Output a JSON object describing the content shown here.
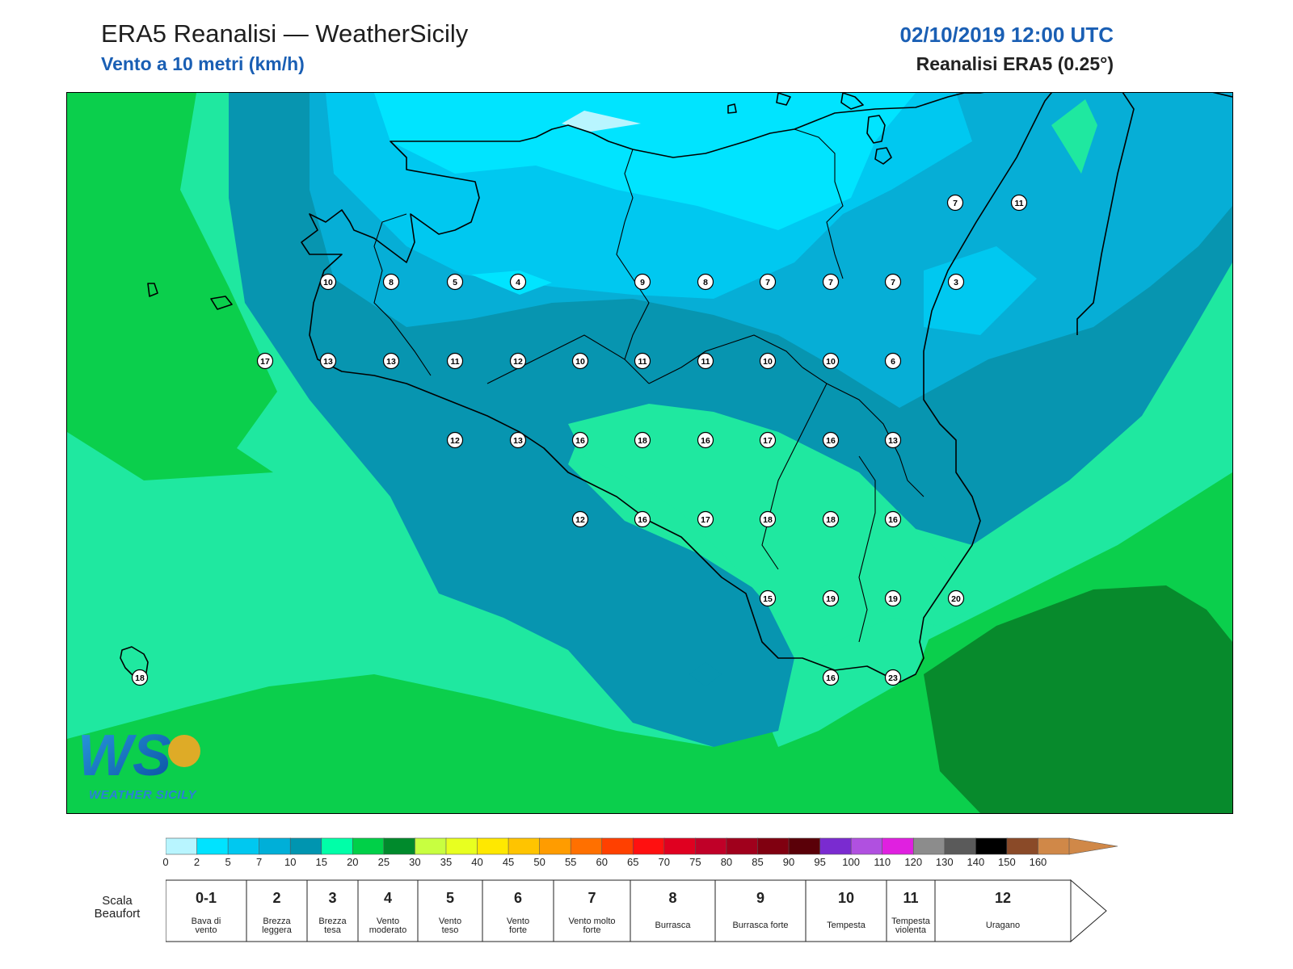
{
  "header": {
    "title": "ERA5 Reanalisi — WeatherSicily",
    "subtitle": "Vento a 10 metri (km/h)",
    "datetime": "02/10/2019 12:00 UTC",
    "source": "Reanalisi ERA5 (0.25°)"
  },
  "logo": {
    "text": "WEATHER SICILY",
    "letters": "WS"
  },
  "colorbar": {
    "ticks": [
      "0",
      "2",
      "5",
      "7",
      "10",
      "15",
      "20",
      "25",
      "30",
      "35",
      "40",
      "45",
      "50",
      "55",
      "60",
      "65",
      "70",
      "75",
      "80",
      "85",
      "90",
      "95",
      "100",
      "110",
      "120",
      "130",
      "140",
      "150",
      "160"
    ],
    "colors": [
      "#b8f5ff",
      "#00e3ff",
      "#00c8f0",
      "#00afd8",
      "#0095b0",
      "#00ffa8",
      "#00d048",
      "#008a2c",
      "#c8ff40",
      "#e8ff20",
      "#ffe800",
      "#ffc400",
      "#ff9c00",
      "#ff7000",
      "#ff4000",
      "#ff1010",
      "#e00020",
      "#c00028",
      "#a0001c",
      "#800010",
      "#5a0008",
      "#7a2bd0",
      "#b050e0",
      "#e020e0",
      "#8c8c8c",
      "#5a5a5a",
      "#000000",
      "#8a4a28",
      "#d08848"
    ]
  },
  "beaufort": {
    "label": "Scala Beaufort",
    "classes": [
      {
        "num": "0-1",
        "desc": "Bava di vento"
      },
      {
        "num": "2",
        "desc": "Brezza leggera"
      },
      {
        "num": "3",
        "desc": "Brezza tesa"
      },
      {
        "num": "4",
        "desc": "Vento moderato"
      },
      {
        "num": "5",
        "desc": "Vento teso"
      },
      {
        "num": "6",
        "desc": "Vento forte"
      },
      {
        "num": "7",
        "desc": "Vento molto forte"
      },
      {
        "num": "8",
        "desc": "Burrasca"
      },
      {
        "num": "9",
        "desc": "Burrasca forte"
      },
      {
        "num": "10",
        "desc": "Tempesta"
      },
      {
        "num": "11",
        "desc": "Tempesta violenta"
      },
      {
        "num": "12",
        "desc": "Uragano"
      }
    ]
  },
  "stations": [
    "7",
    "11",
    "10",
    "8",
    "5",
    "4",
    "9",
    "8",
    "7",
    "7",
    "7",
    "3",
    "17",
    "13",
    "13",
    "11",
    "12",
    "10",
    "11",
    "11",
    "10",
    "10",
    "6",
    "12",
    "13",
    "16",
    "18",
    "16",
    "17",
    "16",
    "13",
    "12",
    "16",
    "17",
    "18",
    "18",
    "16",
    "15",
    "19",
    "19",
    "20",
    "18",
    "16",
    "23"
  ]
}
